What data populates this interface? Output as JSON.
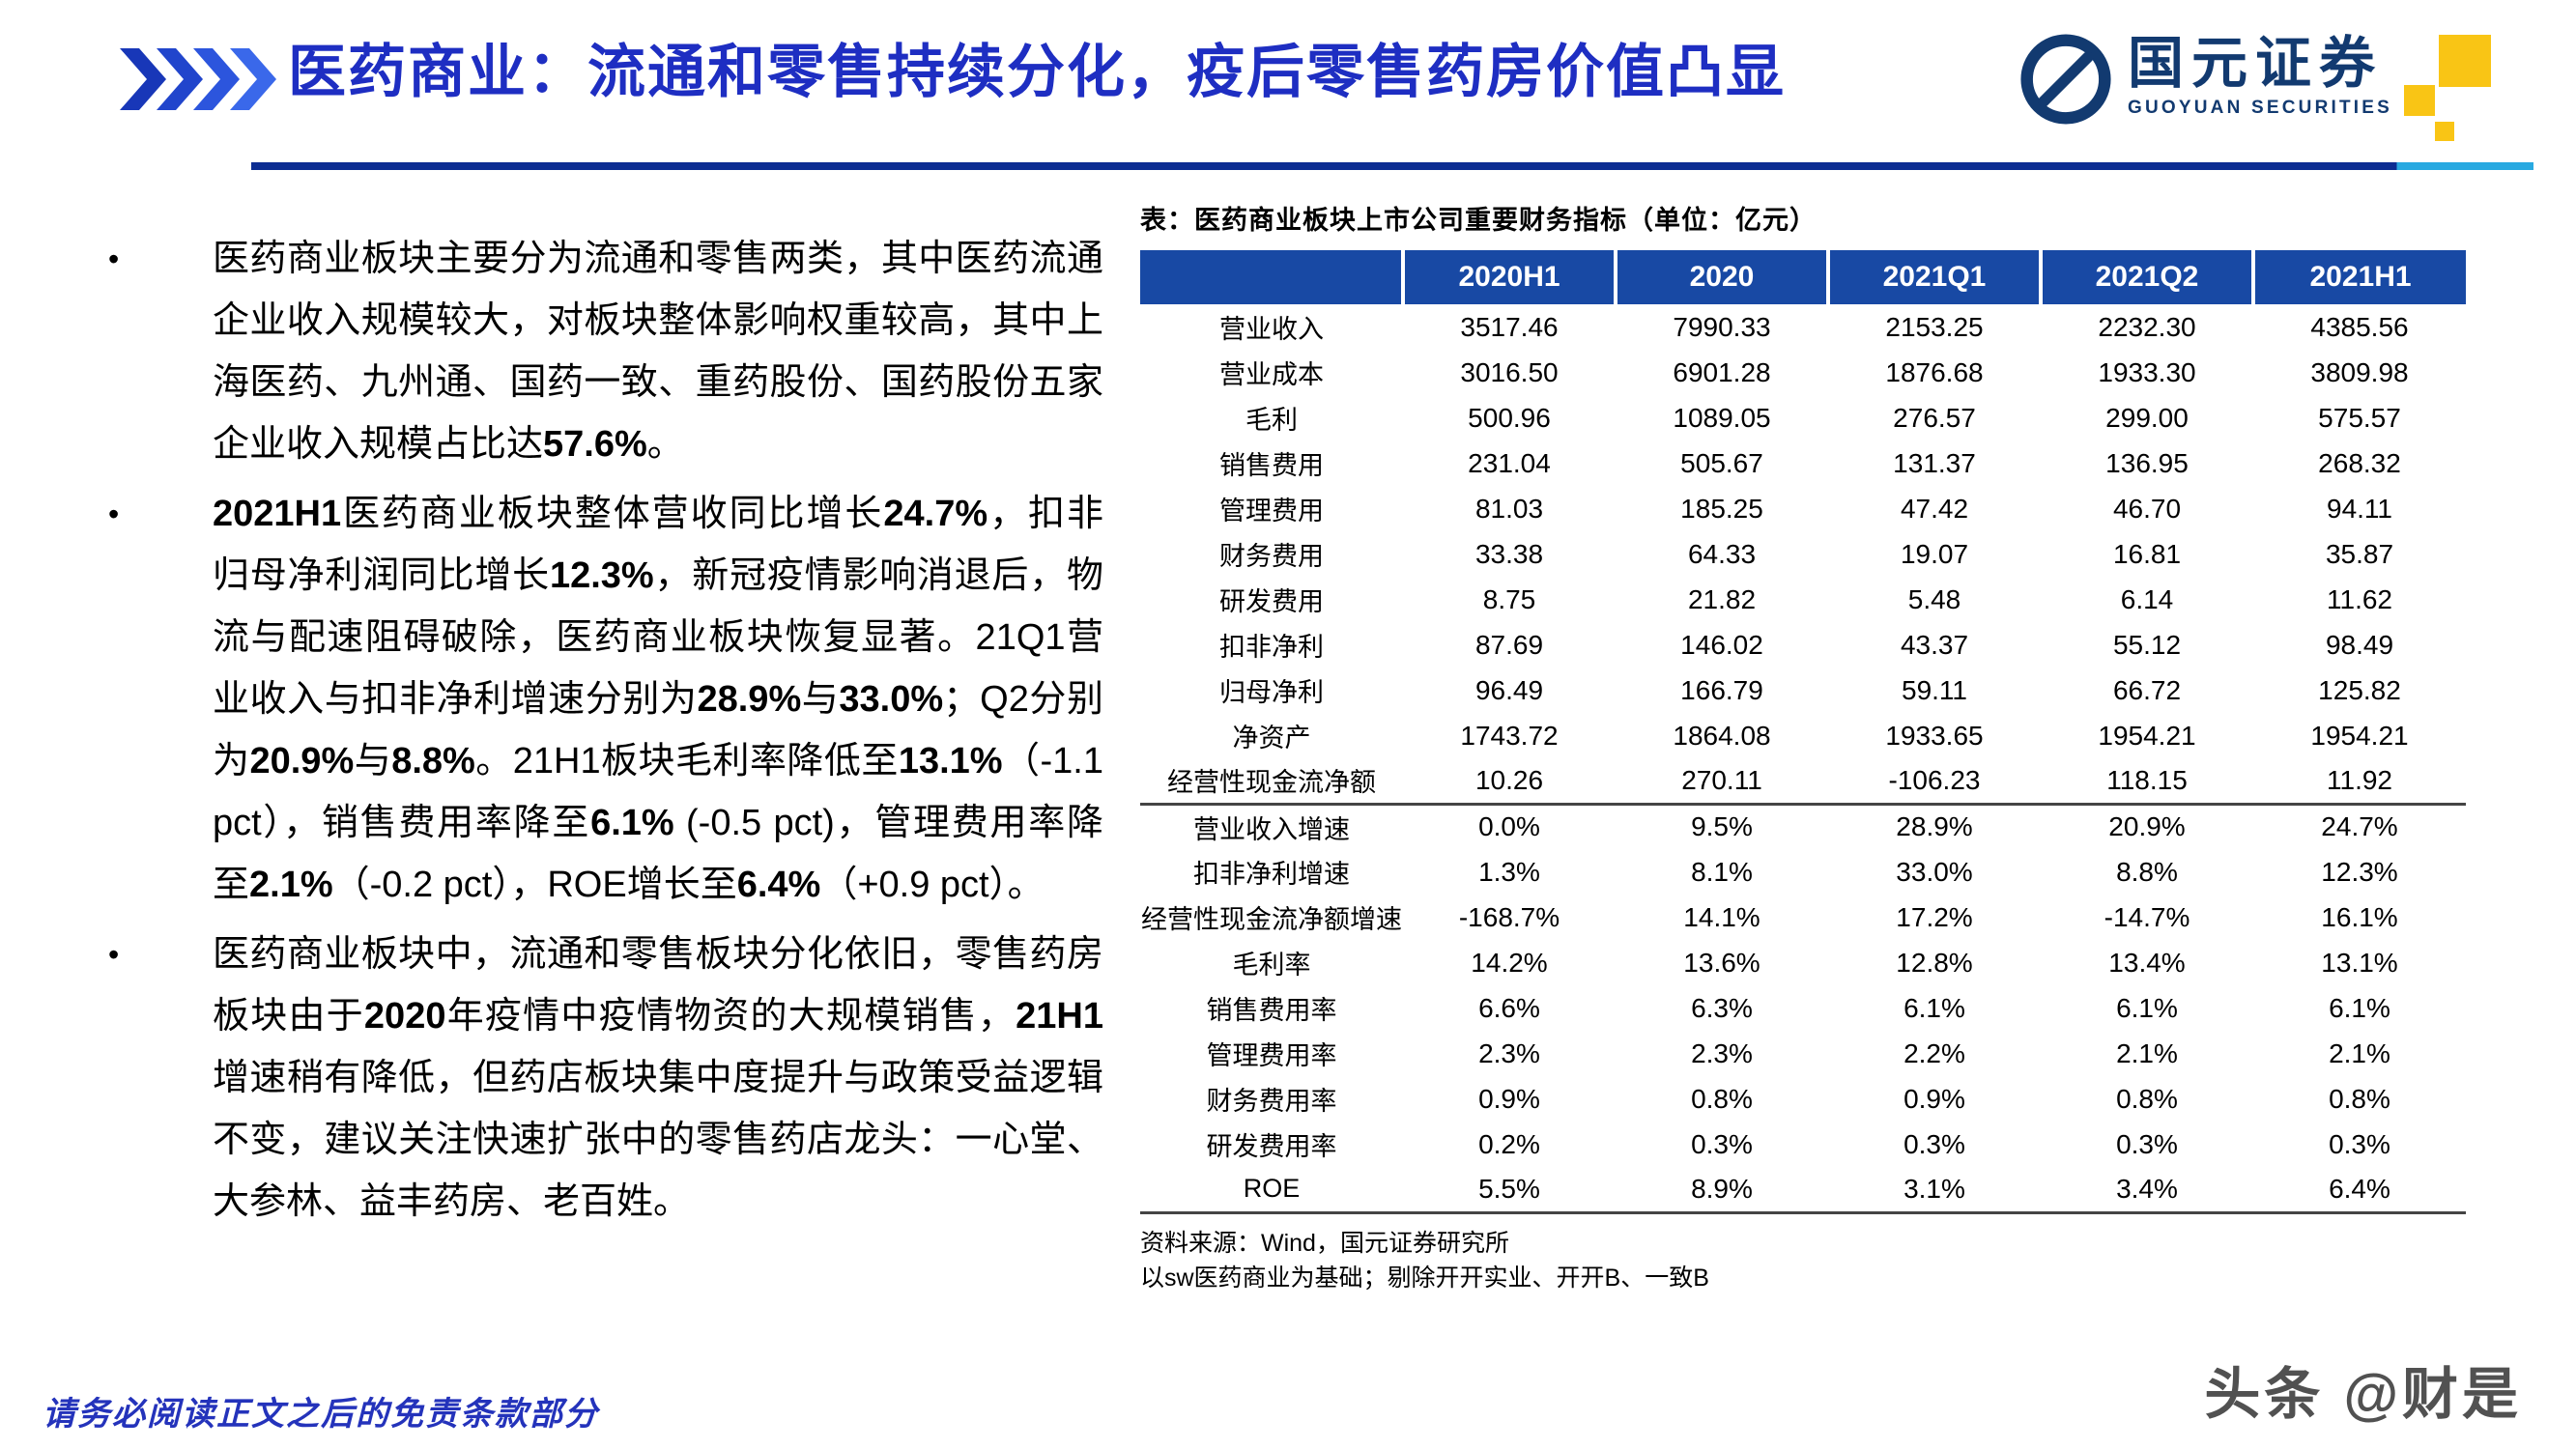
{
  "header": {
    "title": "医药商业：流通和零售持续分化，疫后零售药房价值凸显",
    "logo": {
      "name": "国元证券",
      "subtitle": "GUOYUAN SECURITIES"
    }
  },
  "bullets": [
    {
      "segments": [
        {
          "text": "医药商业板块主要分为流通和零售两类，其中医药流通企业收入规模较大，对板块整体影响权重较高，其中上海医药、九州通、国药一致、重药股份、国药股份五家企业收入规模占比达",
          "bold": false
        },
        {
          "text": "57.6%",
          "bold": true
        },
        {
          "text": "。",
          "bold": false
        }
      ]
    },
    {
      "segments": [
        {
          "text": "2021H1",
          "bold": true
        },
        {
          "text": "医药商业板块整体营收同比增长",
          "bold": false
        },
        {
          "text": "24.7%",
          "bold": true
        },
        {
          "text": "，扣非归母净利润同比增长",
          "bold": false
        },
        {
          "text": "12.3%",
          "bold": true
        },
        {
          "text": "，新冠疫情影响消退后，物流与配速阻碍破除，医药商业板块恢复显著。21Q1营业收入与扣非净利增速分别为",
          "bold": false
        },
        {
          "text": "28.9%",
          "bold": true
        },
        {
          "text": "与",
          "bold": false
        },
        {
          "text": "33.0%",
          "bold": true
        },
        {
          "text": "；Q2分别为",
          "bold": false
        },
        {
          "text": "20.9%",
          "bold": true
        },
        {
          "text": "与",
          "bold": false
        },
        {
          "text": "8.8%",
          "bold": true
        },
        {
          "text": "。21H1板块毛利率降低至",
          "bold": false
        },
        {
          "text": "13.1%",
          "bold": true
        },
        {
          "text": "（-1.1 pct），销售费用率降至",
          "bold": false
        },
        {
          "text": "6.1%",
          "bold": true
        },
        {
          "text": " (-0.5 pct)，管理费用率降至",
          "bold": false
        },
        {
          "text": "2.1%",
          "bold": true
        },
        {
          "text": "（-0.2 pct），ROE增长至",
          "bold": false
        },
        {
          "text": "6.4%",
          "bold": true
        },
        {
          "text": "（+0.9 pct）。",
          "bold": false
        }
      ]
    },
    {
      "segments": [
        {
          "text": "医药商业板块中，流通和零售板块分化依旧，零售药房板块由于",
          "bold": false
        },
        {
          "text": "2020",
          "bold": true
        },
        {
          "text": "年疫情中疫情物资的大规模销售，",
          "bold": false
        },
        {
          "text": "21H1",
          "bold": true
        },
        {
          "text": "增速稍有降低，但药店板块集中度提升与政策受益逻辑不变，建议关注快速扩张中的零售药店龙头：一心堂、大参林、益丰药房、老百姓。",
          "bold": false
        }
      ]
    }
  ],
  "table": {
    "caption": "表：医药商业板块上市公司重要财务指标（单位：亿元）",
    "columns": [
      "2020H1",
      "2020",
      "2021Q1",
      "2021Q2",
      "2021H1"
    ],
    "rows": [
      {
        "label": "营业收入",
        "values": [
          "3517.46",
          "7990.33",
          "2153.25",
          "2232.30",
          "4385.56"
        ]
      },
      {
        "label": "营业成本",
        "values": [
          "3016.50",
          "6901.28",
          "1876.68",
          "1933.30",
          "3809.98"
        ]
      },
      {
        "label": "毛利",
        "values": [
          "500.96",
          "1089.05",
          "276.57",
          "299.00",
          "575.57"
        ]
      },
      {
        "label": "销售费用",
        "values": [
          "231.04",
          "505.67",
          "131.37",
          "136.95",
          "268.32"
        ]
      },
      {
        "label": "管理费用",
        "values": [
          "81.03",
          "185.25",
          "47.42",
          "46.70",
          "94.11"
        ]
      },
      {
        "label": "财务费用",
        "values": [
          "33.38",
          "64.33",
          "19.07",
          "16.81",
          "35.87"
        ]
      },
      {
        "label": "研发费用",
        "values": [
          "8.75",
          "21.82",
          "5.48",
          "6.14",
          "11.62"
        ]
      },
      {
        "label": "扣非净利",
        "values": [
          "87.69",
          "146.02",
          "43.37",
          "55.12",
          "98.49"
        ]
      },
      {
        "label": "归母净利",
        "values": [
          "96.49",
          "166.79",
          "59.11",
          "66.72",
          "125.82"
        ]
      },
      {
        "label": "净资产",
        "values": [
          "1743.72",
          "1864.08",
          "1933.65",
          "1954.21",
          "1954.21"
        ]
      },
      {
        "label": "经营性现金流净额",
        "values": [
          "10.26",
          "270.11",
          "-106.23",
          "118.15",
          "11.92"
        ]
      },
      {
        "label": "营业收入增速",
        "values": [
          "0.0%",
          "9.5%",
          "28.9%",
          "20.9%",
          "24.7%"
        ],
        "separator_above": true
      },
      {
        "label": "扣非净利增速",
        "values": [
          "1.3%",
          "8.1%",
          "33.0%",
          "8.8%",
          "12.3%"
        ]
      },
      {
        "label": "经营性现金流净额增速",
        "values": [
          "-168.7%",
          "14.1%",
          "17.2%",
          "-14.7%",
          "16.1%"
        ]
      },
      {
        "label": "毛利率",
        "values": [
          "14.2%",
          "13.6%",
          "12.8%",
          "13.4%",
          "13.1%"
        ]
      },
      {
        "label": "销售费用率",
        "values": [
          "6.6%",
          "6.3%",
          "6.1%",
          "6.1%",
          "6.1%"
        ]
      },
      {
        "label": "管理费用率",
        "values": [
          "2.3%",
          "2.3%",
          "2.2%",
          "2.1%",
          "2.1%"
        ]
      },
      {
        "label": "财务费用率",
        "values": [
          "0.9%",
          "0.8%",
          "0.9%",
          "0.8%",
          "0.8%"
        ]
      },
      {
        "label": "研发费用率",
        "values": [
          "0.2%",
          "0.3%",
          "0.3%",
          "0.3%",
          "0.3%"
        ]
      },
      {
        "label": "ROE",
        "values": [
          "5.5%",
          "8.9%",
          "3.1%",
          "3.4%",
          "6.4%"
        ]
      }
    ],
    "source_line1": "资料来源：Wind，国元证券研究所",
    "source_line2": "以sw医药商业为基础；剔除开开实业、开开B、一致B"
  },
  "footer": {
    "disclaimer": "请务必阅读正文之后的免责条款部分",
    "watermark": "头条 @财是"
  },
  "colors": {
    "accent": "#1e2ec2",
    "header_bar": "#1849a4",
    "navy": "#123a70",
    "yellow": "#f9c515",
    "cyan": "#28a9e1",
    "rule_dark": "#0c2d92",
    "line": "#444444",
    "watermark": "#3a3a3a"
  }
}
